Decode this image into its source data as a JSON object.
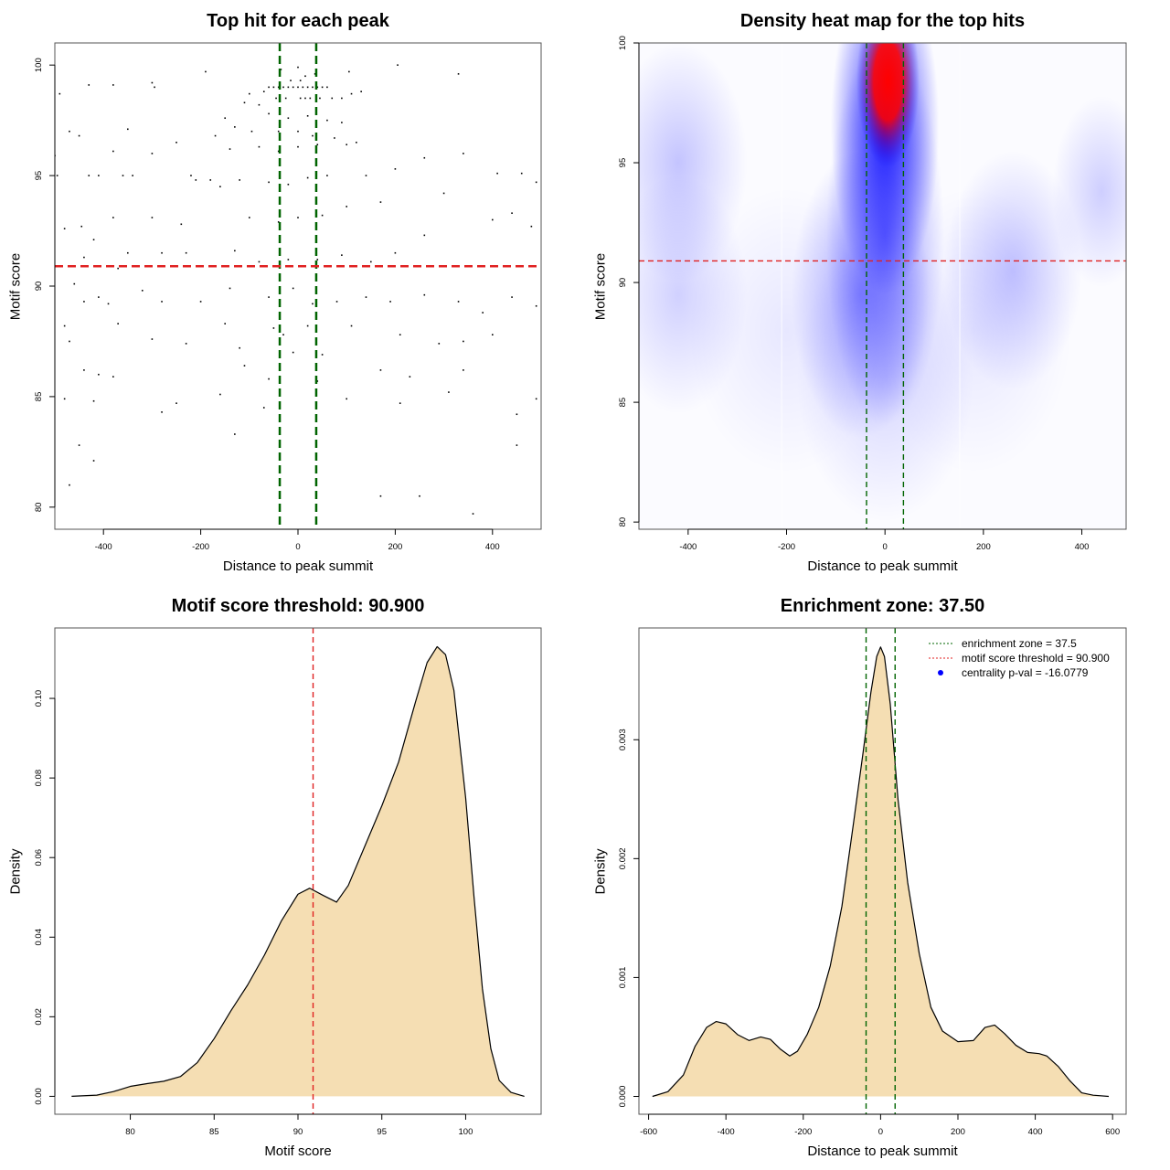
{
  "chart_data": [
    {
      "type": "scatter",
      "title": "Top hit for each peak",
      "xlabel": "Distance to peak summit",
      "ylabel": "Motif score",
      "xlim": [
        -500,
        500
      ],
      "ylim": [
        79,
        101
      ],
      "xticks": [
        "-400",
        "-200",
        "0",
        "200",
        "400"
      ],
      "xtick_values": [
        -400,
        -200,
        0,
        200,
        400
      ],
      "yticks": [
        "80",
        "85",
        "90",
        "95",
        "100"
      ],
      "ytick_values": [
        80,
        85,
        90,
        95,
        100
      ],
      "vlines": [
        -37.5,
        37.5
      ],
      "hline": 90.9,
      "vline_color": "#006400",
      "hline_color": "#e02020",
      "points": [
        [
          -60,
          99
        ],
        [
          -50,
          99
        ],
        [
          -40,
          99
        ],
        [
          -30,
          99
        ],
        [
          -20,
          99
        ],
        [
          -10,
          99
        ],
        [
          0,
          99
        ],
        [
          10,
          99
        ],
        [
          20,
          99
        ],
        [
          30,
          99
        ],
        [
          40,
          99
        ],
        [
          50,
          99
        ],
        [
          60,
          99
        ],
        [
          -45,
          98.5
        ],
        [
          -25,
          98.5
        ],
        [
          5,
          98.5
        ],
        [
          15,
          98.5
        ],
        [
          25,
          98.5
        ],
        [
          45,
          98.5
        ],
        [
          70,
          98.5
        ],
        [
          90,
          98.5
        ],
        [
          -70,
          98.8
        ],
        [
          -100,
          98.7
        ],
        [
          110,
          98.7
        ],
        [
          130,
          98.8
        ],
        [
          -15,
          99.3
        ],
        [
          5,
          99.3
        ],
        [
          15,
          99.5
        ],
        [
          -35,
          99.8
        ],
        [
          35,
          99.6
        ],
        [
          0,
          99.9
        ],
        [
          105,
          99.7
        ],
        [
          -190,
          99.7
        ],
        [
          -300,
          99.2
        ],
        [
          -295,
          99
        ],
        [
          205,
          100
        ],
        [
          330,
          99.6
        ],
        [
          -490,
          98.7
        ],
        [
          -430,
          99.1
        ],
        [
          -380,
          99.1
        ],
        [
          -110,
          98.3
        ],
        [
          -80,
          98.2
        ],
        [
          -60,
          97.8
        ],
        [
          -20,
          97.6
        ],
        [
          20,
          97.7
        ],
        [
          60,
          97.5
        ],
        [
          90,
          97.4
        ],
        [
          -150,
          97.6
        ],
        [
          -130,
          97.2
        ],
        [
          -95,
          97
        ],
        [
          -40,
          97
        ],
        [
          0,
          97
        ],
        [
          30,
          96.8
        ],
        [
          75,
          96.7
        ],
        [
          100,
          96.4
        ],
        [
          -250,
          96.5
        ],
        [
          -170,
          96.8
        ],
        [
          -140,
          96.2
        ],
        [
          -80,
          96.3
        ],
        [
          -40,
          96.1
        ],
        [
          0,
          96.3
        ],
        [
          40,
          96.4
        ],
        [
          120,
          96.5
        ],
        [
          -350,
          97.1
        ],
        [
          -380,
          96.1
        ],
        [
          -470,
          97
        ],
        [
          -450,
          96.8
        ],
        [
          -500,
          95.9
        ],
        [
          -495,
          95
        ],
        [
          -430,
          95
        ],
        [
          -410,
          95
        ],
        [
          -360,
          95
        ],
        [
          -340,
          95
        ],
        [
          -300,
          96
        ],
        [
          -220,
          95
        ],
        [
          -210,
          94.8
        ],
        [
          -180,
          94.8
        ],
        [
          -160,
          94.5
        ],
        [
          -120,
          94.8
        ],
        [
          -60,
          94.7
        ],
        [
          -20,
          94.6
        ],
        [
          20,
          94.9
        ],
        [
          60,
          95
        ],
        [
          140,
          95
        ],
        [
          200,
          95.3
        ],
        [
          260,
          95.8
        ],
        [
          340,
          96
        ],
        [
          410,
          95.1
        ],
        [
          460,
          95.1
        ],
        [
          490,
          94.7
        ],
        [
          300,
          94.2
        ],
        [
          170,
          93.8
        ],
        [
          100,
          93.6
        ],
        [
          50,
          93.2
        ],
        [
          0,
          93.1
        ],
        [
          -40,
          92.9
        ],
        [
          -100,
          93.1
        ],
        [
          -240,
          92.8
        ],
        [
          -300,
          93.1
        ],
        [
          -380,
          93.1
        ],
        [
          -480,
          92.6
        ],
        [
          -445,
          92.7
        ],
        [
          -420,
          92.1
        ],
        [
          400,
          93
        ],
        [
          440,
          93.3
        ],
        [
          480,
          92.7
        ],
        [
          260,
          92.3
        ],
        [
          200,
          91.5
        ],
        [
          150,
          91.1
        ],
        [
          90,
          91.4
        ],
        [
          40,
          91.2
        ],
        [
          -20,
          91.2
        ],
        [
          -80,
          91.1
        ],
        [
          -130,
          91.6
        ],
        [
          -230,
          91.5
        ],
        [
          -280,
          91.5
        ],
        [
          -350,
          91.5
        ],
        [
          -370,
          90.8
        ],
        [
          -440,
          91.3
        ],
        [
          -460,
          90.1
        ],
        [
          -440,
          89.3
        ],
        [
          -410,
          89.5
        ],
        [
          -390,
          89.2
        ],
        [
          -320,
          89.8
        ],
        [
          -280,
          89.3
        ],
        [
          -200,
          89.3
        ],
        [
          -140,
          89.9
        ],
        [
          -60,
          89.5
        ],
        [
          -10,
          89.9
        ],
        [
          30,
          89.2
        ],
        [
          80,
          89.3
        ],
        [
          140,
          89.5
        ],
        [
          190,
          89.3
        ],
        [
          260,
          89.6
        ],
        [
          330,
          89.3
        ],
        [
          380,
          88.8
        ],
        [
          440,
          89.5
        ],
        [
          490,
          89.1
        ],
        [
          -480,
          88.2
        ],
        [
          -370,
          88.3
        ],
        [
          -300,
          87.6
        ],
        [
          -230,
          87.4
        ],
        [
          -150,
          88.3
        ],
        [
          -50,
          88.1
        ],
        [
          -30,
          87.8
        ],
        [
          20,
          88.2
        ],
        [
          110,
          88.2
        ],
        [
          210,
          87.8
        ],
        [
          290,
          87.4
        ],
        [
          340,
          87.5
        ],
        [
          400,
          87.8
        ],
        [
          -470,
          87.5
        ],
        [
          -120,
          87.2
        ],
        [
          -10,
          87
        ],
        [
          50,
          86.9
        ],
        [
          -410,
          86
        ],
        [
          -380,
          85.9
        ],
        [
          -440,
          86.2
        ],
        [
          -110,
          86.4
        ],
        [
          -60,
          85.8
        ],
        [
          40,
          85.7
        ],
        [
          170,
          86.2
        ],
        [
          230,
          85.9
        ],
        [
          340,
          86.2
        ],
        [
          -480,
          84.9
        ],
        [
          -420,
          84.8
        ],
        [
          -250,
          84.7
        ],
        [
          -280,
          84.3
        ],
        [
          -160,
          85.1
        ],
        [
          -70,
          84.5
        ],
        [
          100,
          84.9
        ],
        [
          210,
          84.7
        ],
        [
          310,
          85.2
        ],
        [
          490,
          84.9
        ],
        [
          -450,
          82.8
        ],
        [
          -420,
          82.1
        ],
        [
          -130,
          83.3
        ],
        [
          450,
          84.2
        ],
        [
          450,
          82.8
        ],
        [
          -470,
          81
        ],
        [
          170,
          80.5
        ],
        [
          250,
          80.5
        ],
        [
          360,
          79.7
        ]
      ]
    },
    {
      "type": "heatmap",
      "title": "Density heat map for the top hits",
      "xlabel": "Distance to peak summit",
      "ylabel": "Motif score",
      "xlim": [
        -500,
        490
      ],
      "ylim": [
        79.7,
        100
      ],
      "xticks": [
        "-400",
        "-200",
        "0",
        "200",
        "400"
      ],
      "xtick_values": [
        -400,
        -200,
        0,
        200,
        400
      ],
      "yticks": [
        "80",
        "85",
        "90",
        "95",
        "100"
      ],
      "ytick_values": [
        80,
        85,
        90,
        95,
        100
      ],
      "vlines": [
        -37.5,
        37.5
      ],
      "hline": 90.9,
      "colors": {
        "low": "#ffffff",
        "mid": "#0000ff",
        "high": "#ff0000"
      },
      "density_peaks": [
        {
          "x": 0,
          "y": 96.5,
          "sx": 55,
          "sy": 3.5,
          "level": 0.9
        },
        {
          "x": 0,
          "y": 92,
          "sx": 60,
          "sy": 4,
          "level": 0.45
        },
        {
          "x": -50,
          "y": 89.5,
          "sx": 70,
          "sy": 3,
          "level": 0.35
        },
        {
          "x": 0,
          "y": 86,
          "sx": 90,
          "sy": 3,
          "level": 0.15
        },
        {
          "x": -420,
          "y": 95,
          "sx": 70,
          "sy": 2.5,
          "level": 0.22
        },
        {
          "x": -420,
          "y": 89.5,
          "sx": 70,
          "sy": 2.5,
          "level": 0.17
        },
        {
          "x": 260,
          "y": 90.5,
          "sx": 70,
          "sy": 2.5,
          "level": 0.22
        },
        {
          "x": 440,
          "y": 93.8,
          "sx": 50,
          "sy": 2,
          "level": 0.18
        },
        {
          "x": 180,
          "y": 88,
          "sx": 100,
          "sy": 3,
          "level": 0.08
        },
        {
          "x": -200,
          "y": 88,
          "sx": 100,
          "sy": 3,
          "level": 0.08
        },
        {
          "x": 6,
          "y": 98.4,
          "sx": 32,
          "sy": 1.8,
          "level": 1.0
        }
      ]
    },
    {
      "type": "area",
      "title": "Motif score threshold: 90.900",
      "xlabel": "Motif score",
      "ylabel": "Density",
      "xlim": [
        75.5,
        104.5
      ],
      "ylim": [
        -0.0045,
        0.1177
      ],
      "xticks": [
        "80",
        "85",
        "90",
        "95",
        "100"
      ],
      "xtick_values": [
        80,
        85,
        90,
        95,
        100
      ],
      "yticks": [
        "0.00",
        "0.02",
        "0.04",
        "0.06",
        "0.08",
        "0.10"
      ],
      "ytick_values": [
        0,
        0.02,
        0.04,
        0.06,
        0.08,
        0.1
      ],
      "vlines": [
        90.9
      ],
      "vline_color": "#e02020",
      "fill": "#f5deb3",
      "x": [
        76.5,
        78,
        79,
        80,
        81,
        82,
        83,
        84,
        85,
        86,
        87,
        88,
        89,
        90,
        90.7,
        91.5,
        92.3,
        93,
        94,
        95,
        96,
        97,
        97.7,
        98.3,
        98.8,
        99.3,
        100,
        100.5,
        101,
        101.5,
        102,
        102.7,
        103.5
      ],
      "y": [
        0,
        0.0003,
        0.0012,
        0.0025,
        0.0032,
        0.0038,
        0.005,
        0.0085,
        0.0145,
        0.0215,
        0.028,
        0.0355,
        0.044,
        0.0508,
        0.0523,
        0.0505,
        0.0488,
        0.053,
        0.063,
        0.073,
        0.084,
        0.099,
        0.109,
        0.113,
        0.111,
        0.102,
        0.075,
        0.05,
        0.027,
        0.012,
        0.004,
        0.001,
        0
      ]
    },
    {
      "type": "area",
      "title": "Enrichment zone: 37.50",
      "xlabel": "Distance to peak summit",
      "ylabel": "Density",
      "xlim": [
        -625,
        635
      ],
      "ylim": [
        -0.00015,
        0.00394
      ],
      "xticks": [
        "-600",
        "-400",
        "-200",
        "0",
        "200",
        "400",
        "600"
      ],
      "xtick_values": [
        -600,
        -400,
        -200,
        0,
        200,
        400,
        600
      ],
      "yticks": [
        "0.000",
        "0.001",
        "0.002",
        "0.003"
      ],
      "ytick_values": [
        0,
        0.001,
        0.002,
        0.003
      ],
      "vlines": [
        -37.5,
        37.5
      ],
      "vline_color": "#006400",
      "fill": "#f5deb3",
      "x": [
        -590,
        -550,
        -510,
        -480,
        -450,
        -425,
        -400,
        -370,
        -340,
        -310,
        -285,
        -260,
        -235,
        -215,
        -190,
        -160,
        -130,
        -100,
        -70,
        -45,
        -25,
        -10,
        0,
        10,
        25,
        45,
        70,
        100,
        130,
        160,
        200,
        240,
        270,
        295,
        320,
        350,
        380,
        410,
        430,
        460,
        490,
        520,
        550,
        590
      ],
      "y": [
        0,
        4e-05,
        0.00018,
        0.00042,
        0.00058,
        0.00063,
        0.00061,
        0.00052,
        0.00047,
        0.0005,
        0.00048,
        0.0004,
        0.00034,
        0.00038,
        0.00052,
        0.00075,
        0.0011,
        0.0016,
        0.0023,
        0.0029,
        0.0034,
        0.0037,
        0.00378,
        0.0037,
        0.0033,
        0.0025,
        0.0018,
        0.0012,
        0.00075,
        0.00055,
        0.00046,
        0.00047,
        0.00058,
        0.0006,
        0.00053,
        0.00043,
        0.00037,
        0.00036,
        0.00034,
        0.00025,
        0.00013,
        3e-05,
        1e-05,
        0
      ],
      "legend": [
        {
          "label": "enrichment zone = 37.5",
          "color": "#006400",
          "symbol": "dotted-line"
        },
        {
          "label": "motif score threshold = 90.900",
          "color": "#e02020",
          "symbol": "dotted-line"
        },
        {
          "label": "centrality p-val = -16.0779",
          "color": "#0000ff",
          "symbol": "dot"
        }
      ],
      "legend_position": "top-right"
    }
  ]
}
